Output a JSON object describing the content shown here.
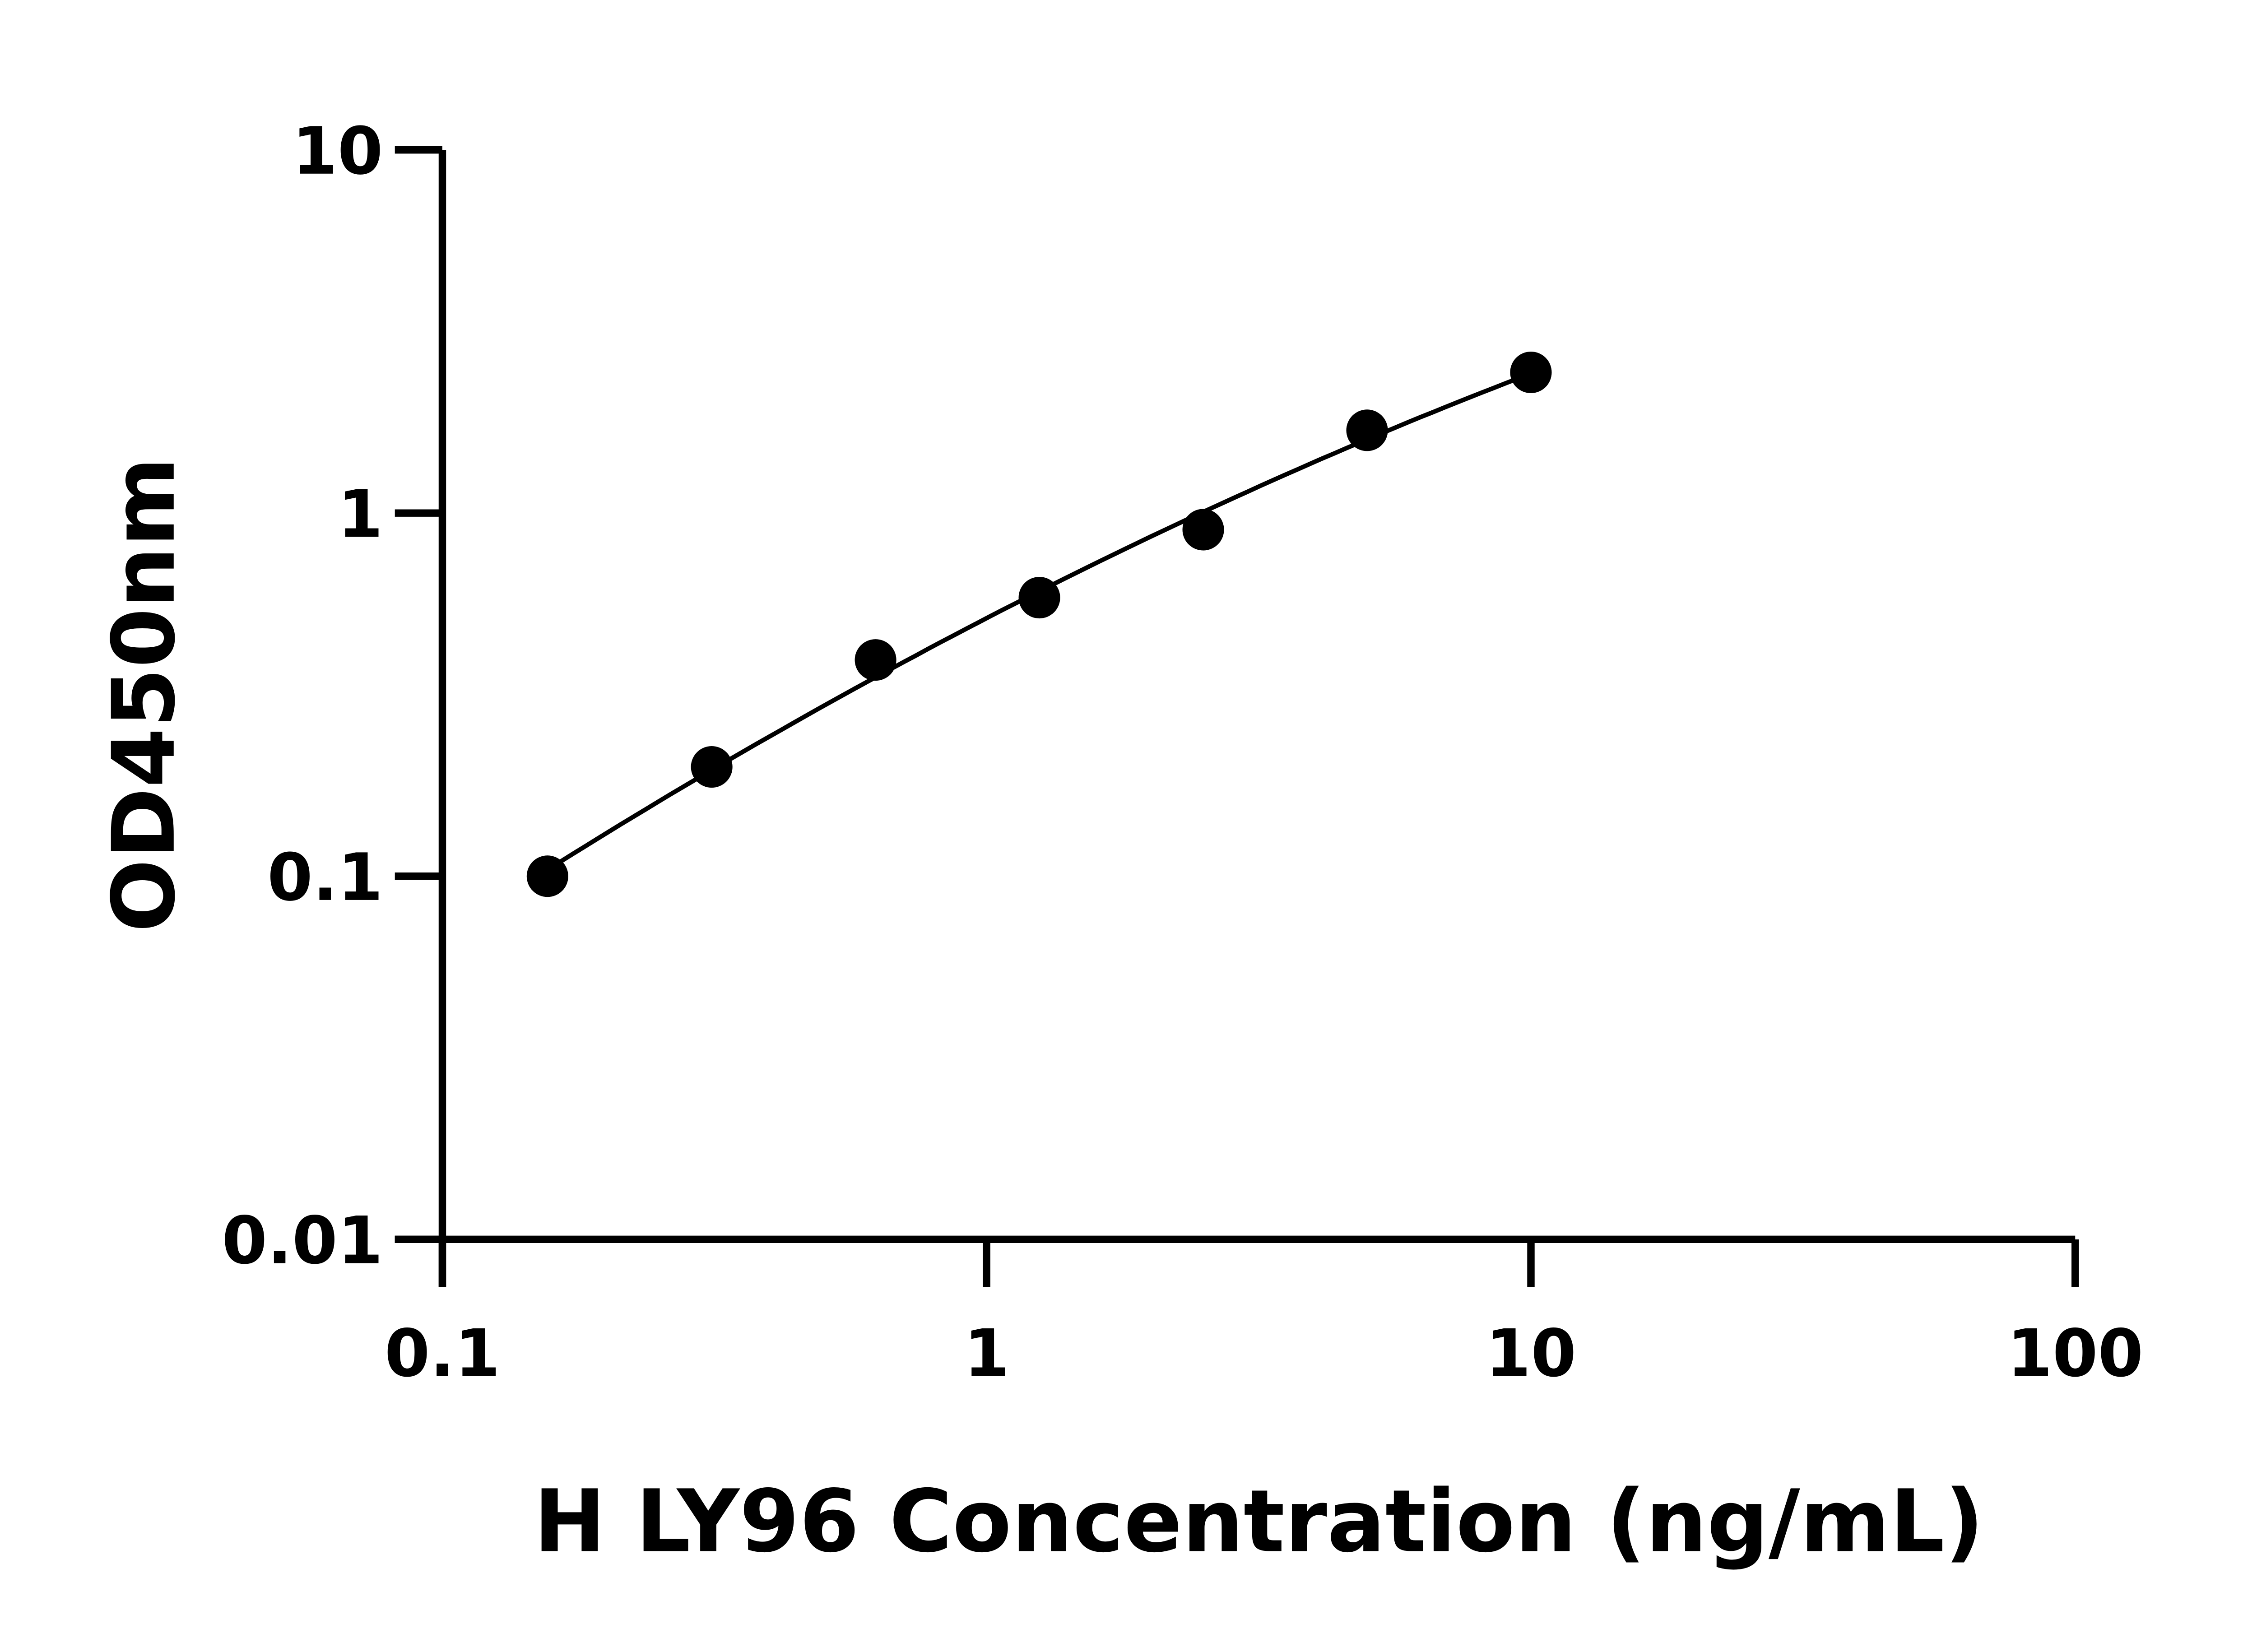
{
  "chart_data": {
    "type": "scatter",
    "title": "",
    "xlabel": "H LY96 Concentration (ng/mL)",
    "ylabel": "OD450nm",
    "x_scale": "log",
    "y_scale": "log",
    "xlim": [
      0.1,
      100
    ],
    "ylim": [
      0.01,
      10
    ],
    "x_ticks": [
      0.1,
      1,
      10,
      100
    ],
    "x_tick_labels": [
      "0.1",
      "1",
      "10",
      "100"
    ],
    "y_ticks": [
      0.01,
      0.1,
      1,
      10
    ],
    "y_tick_labels": [
      "0.01",
      "0.1",
      "1",
      "10"
    ],
    "grid": false,
    "legend": "none",
    "fit_line": true,
    "colors": {
      "points": "#000000",
      "line": "#000000",
      "axes": "#000000"
    },
    "series": [
      {
        "x": [
          0.156,
          0.3125,
          0.625,
          1.25,
          2.5,
          5,
          10
        ],
        "y": [
          0.1,
          0.2,
          0.394,
          0.585,
          0.9,
          1.69,
          2.44
        ]
      }
    ]
  }
}
